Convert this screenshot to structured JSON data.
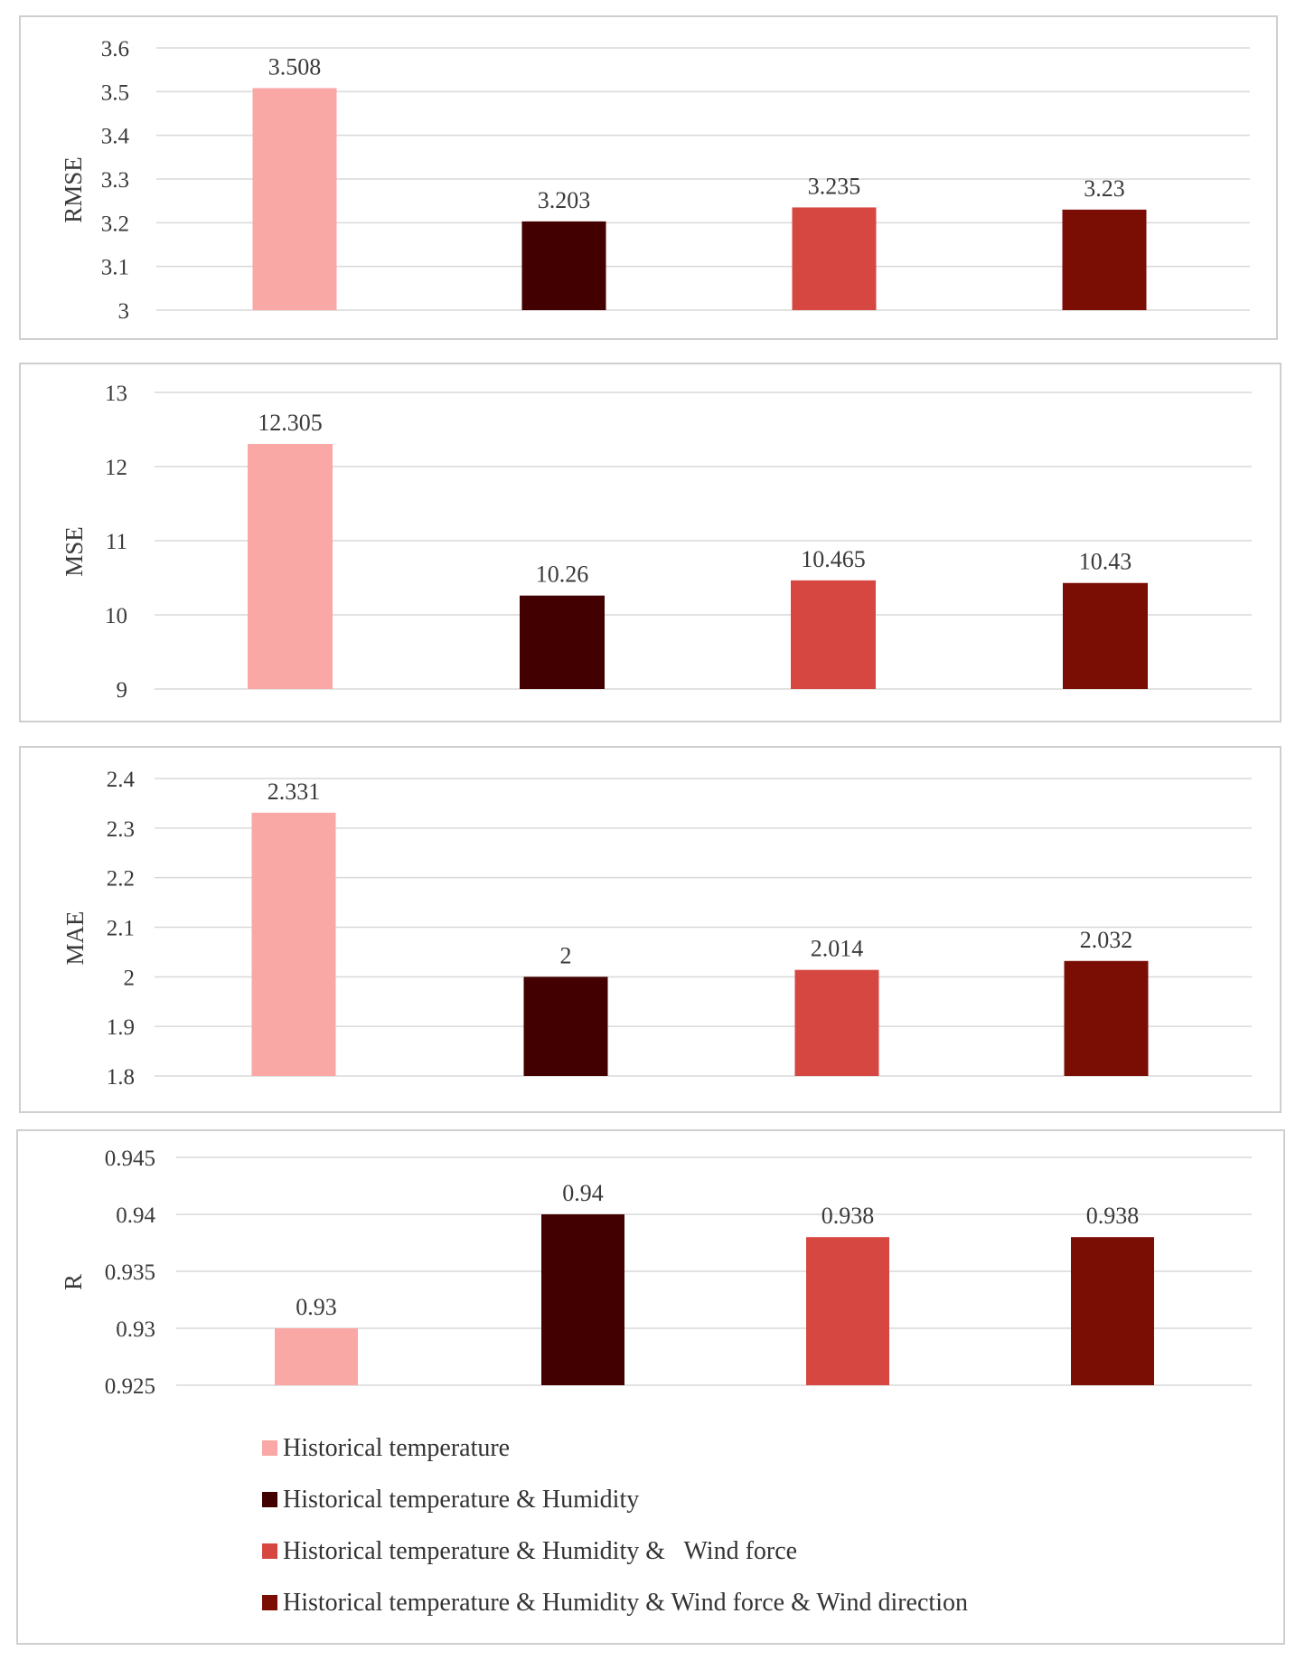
{
  "colors": [
    "#F9A8A6",
    "#420000",
    "#D64742",
    "#7A0D04"
  ],
  "legend": {
    "items": [
      "Historical temperature",
      "Historical temperature & Humidity",
      "Historical temperature & Humidity &   Wind force",
      "Historical temperature & Humidity & Wind force & Wind direction"
    ]
  },
  "chart_data": [
    {
      "type": "bar",
      "ylabel": "RMSE",
      "categories": [
        "Historical temperature",
        "Historical temperature & Humidity",
        "Historical temperature & Humidity &   Wind force",
        "Historical temperature & Humidity & Wind force & Wind direction"
      ],
      "values": [
        3.508,
        3.203,
        3.235,
        3.23
      ],
      "value_labels": [
        "3.508",
        "3.203",
        "3.235",
        "3.23"
      ],
      "ylim": [
        3,
        3.6
      ],
      "ticks": [
        "3",
        "3.1",
        "3.2",
        "3.3",
        "3.4",
        "3.5",
        "3.6"
      ],
      "grid": true
    },
    {
      "type": "bar",
      "ylabel": "MSE",
      "categories": [
        "Historical temperature",
        "Historical temperature & Humidity",
        "Historical temperature & Humidity &   Wind force",
        "Historical temperature & Humidity & Wind force & Wind direction"
      ],
      "values": [
        12.305,
        10.26,
        10.465,
        10.43
      ],
      "value_labels": [
        "12.305",
        "10.26",
        "10.465",
        "10.43"
      ],
      "ylim": [
        9,
        13
      ],
      "ticks": [
        "9",
        "10",
        "11",
        "12",
        "13"
      ],
      "grid": true
    },
    {
      "type": "bar",
      "ylabel": "MAE",
      "categories": [
        "Historical temperature",
        "Historical temperature & Humidity",
        "Historical temperature & Humidity &   Wind force",
        "Historical temperature & Humidity & Wind force & Wind direction"
      ],
      "values": [
        2.331,
        2,
        2.014,
        2.032
      ],
      "value_labels": [
        "2.331",
        "2",
        "2.014",
        "2.032"
      ],
      "ylim": [
        1.8,
        2.4
      ],
      "ticks": [
        "1.8",
        "1.9",
        "2",
        "2.1",
        "2.2",
        "2.3",
        "2.4"
      ],
      "grid": true
    },
    {
      "type": "bar",
      "ylabel": "R",
      "categories": [
        "Historical temperature",
        "Historical temperature & Humidity",
        "Historical temperature & Humidity &   Wind force",
        "Historical temperature & Humidity & Wind force & Wind direction"
      ],
      "values": [
        0.93,
        0.94,
        0.938,
        0.938
      ],
      "value_labels": [
        "0.93",
        "0.94",
        "0.938",
        "0.938"
      ],
      "ylim": [
        0.925,
        0.945
      ],
      "ticks": [
        "0.925",
        "0.93",
        "0.935",
        "0.94",
        "0.945"
      ],
      "grid": true,
      "legend_position": "bottom"
    }
  ]
}
